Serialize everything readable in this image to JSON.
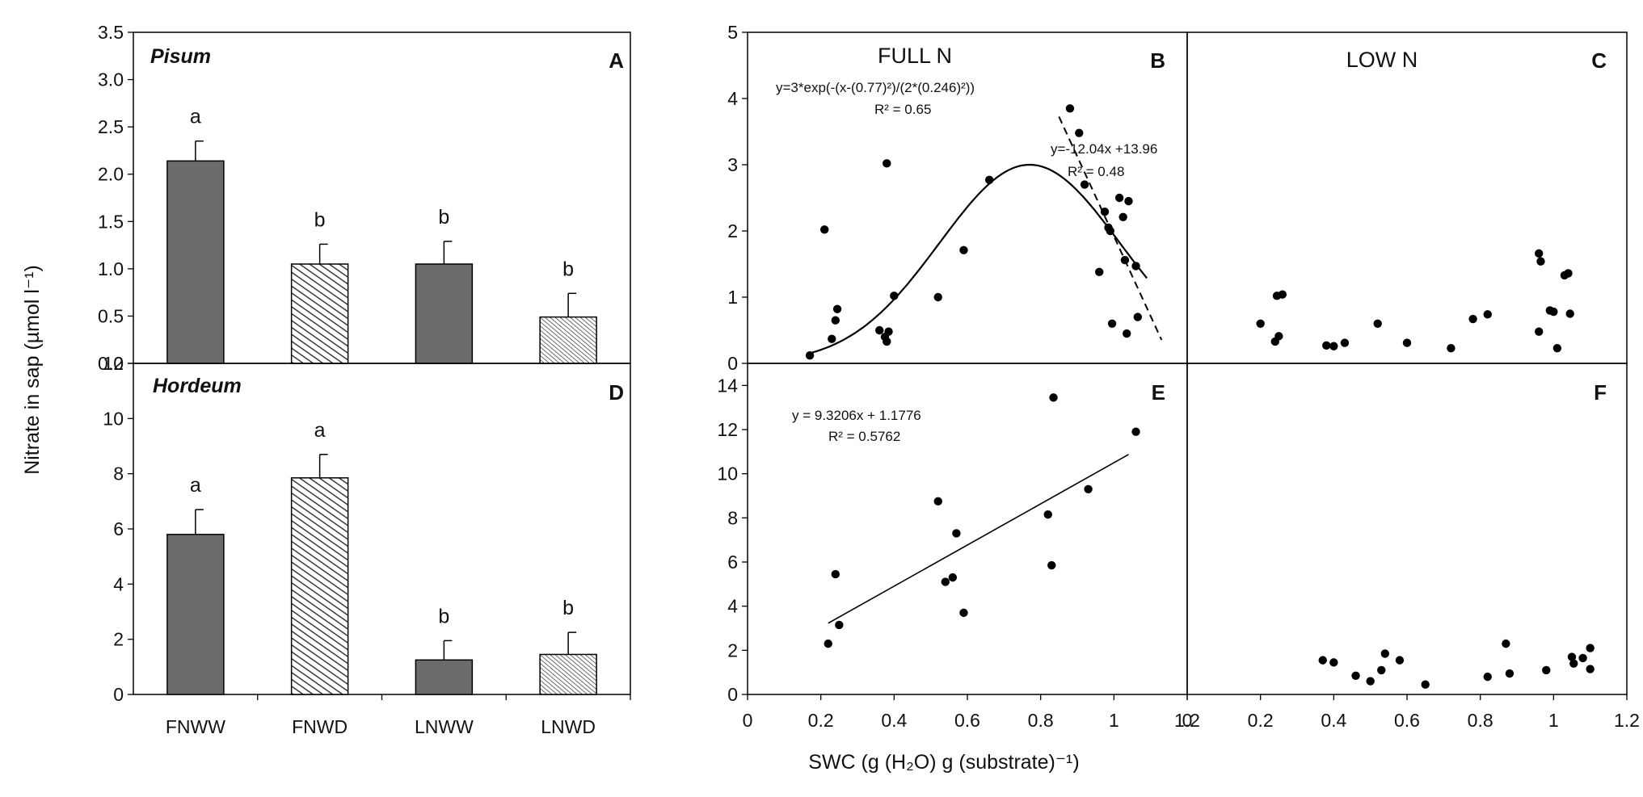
{
  "figure": {
    "bar_ylabel": "Nitrate in sap (µmol l⁻¹)",
    "scatter_xlabel": "SWC (g (H₂O) g (substrate)⁻¹)"
  },
  "colors": {
    "axis": "#000000",
    "dark_bar": "#6b6b6b",
    "hatch": "#3a3a3a",
    "point": "#000000"
  },
  "chart_data": [
    {
      "panel": "A",
      "type": "bar",
      "species": "Pisum",
      "categories": [
        "FNWW",
        "FNWD",
        "LNWW",
        "LNWD"
      ],
      "values": [
        2.14,
        1.05,
        1.05,
        0.49
      ],
      "errors": [
        0.21,
        0.21,
        0.24,
        0.25
      ],
      "letters": [
        "a",
        "b",
        "b",
        "b"
      ],
      "fills": [
        "solid",
        "hatch-dense",
        "solid",
        "hatch-fine"
      ],
      "ylim": [
        0,
        3.5
      ],
      "yticks": [
        "0.0",
        "0.5",
        "1.0",
        "1.5",
        "2.0",
        "2.5",
        "3.0",
        "3.5"
      ]
    },
    {
      "panel": "D",
      "type": "bar",
      "species": "Hordeum",
      "categories": [
        "FNWW",
        "FNWD",
        "LNWW",
        "LNWD"
      ],
      "values": [
        5.8,
        7.85,
        1.25,
        1.45
      ],
      "errors": [
        0.9,
        0.85,
        0.7,
        0.8
      ],
      "letters": [
        "a",
        "a",
        "b",
        "b"
      ],
      "fills": [
        "solid",
        "hatch-dense",
        "solid",
        "hatch-fine"
      ],
      "ylim": [
        0,
        12
      ],
      "yticks": [
        "0",
        "2",
        "4",
        "6",
        "8",
        "10",
        "12"
      ]
    },
    {
      "panel": "B",
      "type": "scatter",
      "title": "FULL N",
      "xlim": [
        0,
        1.2
      ],
      "ylim": [
        0,
        5
      ],
      "yticks": [
        "0",
        "1",
        "2",
        "3",
        "4",
        "5"
      ],
      "points": [
        [
          0.17,
          0.12
        ],
        [
          0.21,
          2.02
        ],
        [
          0.23,
          0.37
        ],
        [
          0.24,
          0.65
        ],
        [
          0.245,
          0.82
        ],
        [
          0.36,
          0.5
        ],
        [
          0.375,
          0.4
        ],
        [
          0.38,
          0.33
        ],
        [
          0.38,
          3.02
        ],
        [
          0.385,
          0.48
        ],
        [
          0.4,
          1.02
        ],
        [
          0.52,
          1.0
        ],
        [
          0.59,
          1.71
        ],
        [
          0.66,
          2.77
        ],
        [
          0.88,
          3.85
        ],
        [
          0.905,
          3.48
        ],
        [
          0.92,
          2.7
        ],
        [
          0.96,
          1.38
        ],
        [
          0.975,
          2.29
        ],
        [
          0.985,
          2.05
        ],
        [
          0.99,
          2.0
        ],
        [
          0.995,
          0.6
        ],
        [
          1.015,
          2.5
        ],
        [
          1.025,
          2.21
        ],
        [
          1.03,
          1.56
        ],
        [
          1.035,
          0.45
        ],
        [
          1.04,
          2.45
        ],
        [
          1.06,
          1.47
        ],
        [
          1.065,
          0.7
        ]
      ],
      "gauss_fit": {
        "amplitude": 3,
        "mu": 0.77,
        "sigma": 0.246,
        "x_range": [
          0.17,
          1.09
        ]
      },
      "linear_fit": {
        "slope": -12.04,
        "intercept": 13.96,
        "x_range": [
          0.85,
          1.13
        ]
      },
      "annotations": [
        "y=3*exp(-(x-(0.77)²)/(2*(0.246)²))",
        "R² = 0.65",
        "y=-12.04x +13.96",
        "R² = 0.48"
      ]
    },
    {
      "panel": "C",
      "type": "scatter",
      "title": "LOW N",
      "xlim": [
        0,
        1.2
      ],
      "ylim": [
        0,
        5
      ],
      "points": [
        [
          0.2,
          0.6
        ],
        [
          0.24,
          0.33
        ],
        [
          0.245,
          1.02
        ],
        [
          0.25,
          0.41
        ],
        [
          0.26,
          1.04
        ],
        [
          0.38,
          0.27
        ],
        [
          0.4,
          0.26
        ],
        [
          0.43,
          0.31
        ],
        [
          0.52,
          0.6
        ],
        [
          0.6,
          0.31
        ],
        [
          0.72,
          0.23
        ],
        [
          0.78,
          0.67
        ],
        [
          0.82,
          0.74
        ],
        [
          0.96,
          1.66
        ],
        [
          0.96,
          0.48
        ],
        [
          0.965,
          1.54
        ],
        [
          0.99,
          0.8
        ],
        [
          1.0,
          0.78
        ],
        [
          1.01,
          0.23
        ],
        [
          1.03,
          1.33
        ],
        [
          1.04,
          1.36
        ],
        [
          1.045,
          0.75
        ]
      ]
    },
    {
      "panel": "E",
      "type": "scatter",
      "xlim": [
        0,
        1.2
      ],
      "ylim": [
        0,
        15
      ],
      "yticks": [
        "0",
        "2",
        "4",
        "6",
        "8",
        "10",
        "12",
        "14"
      ],
      "xticks": [
        "0",
        "0.2",
        "0.4",
        "0.6",
        "0.8",
        "1",
        "1.2"
      ],
      "points": [
        [
          0.22,
          2.3
        ],
        [
          0.24,
          5.45
        ],
        [
          0.25,
          3.15
        ],
        [
          0.52,
          8.75
        ],
        [
          0.54,
          5.1
        ],
        [
          0.56,
          5.3
        ],
        [
          0.57,
          7.3
        ],
        [
          0.59,
          3.7
        ],
        [
          0.82,
          8.15
        ],
        [
          0.83,
          5.85
        ],
        [
          0.835,
          13.45
        ],
        [
          0.93,
          9.3
        ],
        [
          1.06,
          11.9
        ]
      ],
      "linear_fit": {
        "slope": 9.3206,
        "intercept": 1.1776,
        "x_range": [
          0.22,
          1.04
        ]
      },
      "annotations": [
        "y = 9.3206x + 1.1776",
        "R² = 0.5762"
      ]
    },
    {
      "panel": "F",
      "type": "scatter",
      "xlim": [
        0,
        1.2
      ],
      "ylim": [
        0,
        15
      ],
      "xticks": [
        "0",
        "0.2",
        "0.4",
        "0.6",
        "0.8",
        "1",
        "1.2"
      ],
      "points": [
        [
          0.37,
          1.55
        ],
        [
          0.4,
          1.45
        ],
        [
          0.46,
          0.85
        ],
        [
          0.5,
          0.6
        ],
        [
          0.53,
          1.1
        ],
        [
          0.54,
          1.85
        ],
        [
          0.58,
          1.55
        ],
        [
          0.65,
          0.45
        ],
        [
          0.82,
          0.8
        ],
        [
          0.87,
          2.3
        ],
        [
          0.88,
          0.95
        ],
        [
          0.98,
          1.1
        ],
        [
          1.05,
          1.7
        ],
        [
          1.055,
          1.4
        ],
        [
          1.08,
          1.65
        ],
        [
          1.1,
          1.15
        ],
        [
          1.1,
          2.1
        ]
      ]
    }
  ]
}
